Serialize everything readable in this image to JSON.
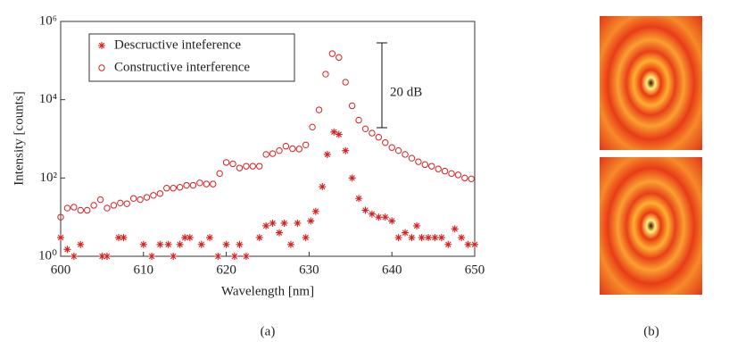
{
  "chart_data": {
    "type": "scatter",
    "xlabel": "Wavelength [nm]",
    "ylabel": "Intensity [counts]",
    "xlim": [
      600,
      650
    ],
    "xticks": [
      600,
      610,
      620,
      630,
      640,
      650
    ],
    "ylim": [
      1,
      1000000
    ],
    "yticks": [
      {
        "value": 1,
        "label": "10⁰"
      },
      {
        "value": 100,
        "label": "10²"
      },
      {
        "value": 10000,
        "label": "10⁴"
      },
      {
        "value": 1000000,
        "label": "10⁶"
      }
    ],
    "log_y": true,
    "legend": "upper left",
    "annotation": "20 dB",
    "caption_a": "(a)",
    "caption_b": "(b)",
    "series": [
      {
        "name": "Descructive inteference",
        "color": "#d42020",
        "marker": "asterisk",
        "x": [
          600,
          600.8,
          601.6,
          602.4,
          605,
          605.6,
          607,
          607.6,
          610,
          611,
          612,
          613,
          613.6,
          614.4,
          615,
          615.6,
          617,
          618,
          619,
          620,
          621,
          621.6,
          622.4,
          624,
          624.8,
          625.6,
          626.4,
          627,
          627.8,
          628.6,
          629.6,
          630.2,
          630.8,
          631.6,
          632.2,
          633,
          633.6,
          634.4,
          635.2,
          636,
          636.8,
          637.6,
          638.4,
          639.2,
          640,
          640.8,
          641.6,
          642.4,
          643,
          643.6,
          644.4,
          645.2,
          646,
          646.8,
          647.6,
          648.4,
          649.2,
          650
        ],
        "values": [
          3,
          1.5,
          1,
          2,
          1,
          1,
          3,
          3,
          2,
          1,
          2,
          2,
          1,
          2,
          3,
          3,
          2,
          3,
          1,
          2,
          1,
          2,
          1,
          3,
          6,
          7,
          4,
          7,
          2,
          7,
          3,
          8,
          14,
          60,
          400,
          1500,
          1300,
          500,
          100,
          30,
          15,
          12,
          10,
          10,
          8,
          3,
          4,
          3,
          6,
          3,
          3,
          3,
          3,
          2,
          5,
          3,
          2,
          2
        ]
      },
      {
        "name": "Constructive interference",
        "color": "#d42020",
        "marker": "circle",
        "x": [
          600,
          600.8,
          601.6,
          602.4,
          603.2,
          604,
          604.8,
          605.6,
          606.4,
          607.2,
          608,
          608.8,
          609.6,
          610.4,
          611.2,
          612,
          612.8,
          613.6,
          614.4,
          615.2,
          616,
          616.8,
          617.6,
          618.4,
          619.2,
          620,
          620.8,
          621.6,
          622.4,
          623.2,
          624,
          624.8,
          625.6,
          626.4,
          627.2,
          628,
          628.8,
          629.6,
          630.4,
          631.2,
          632,
          632.8,
          633.6,
          634.4,
          635.2,
          636,
          636.8,
          637.6,
          638.4,
          639.2,
          640,
          640.8,
          641.6,
          642.4,
          643.2,
          644,
          644.8,
          645.6,
          646.4,
          647.2,
          648,
          648.8,
          649.6
        ],
        "values": [
          10,
          17,
          18,
          15,
          15,
          20,
          28,
          17,
          20,
          23,
          22,
          30,
          28,
          32,
          36,
          40,
          55,
          55,
          58,
          65,
          65,
          75,
          70,
          70,
          130,
          250,
          230,
          180,
          200,
          200,
          200,
          400,
          420,
          500,
          650,
          560,
          550,
          700,
          2000,
          5500,
          45000,
          150000,
          120000,
          28000,
          7000,
          3000,
          1800,
          1400,
          1100,
          800,
          600,
          500,
          400,
          320,
          260,
          220,
          200,
          170,
          150,
          130,
          120,
          100,
          95
        ]
      }
    ]
  }
}
